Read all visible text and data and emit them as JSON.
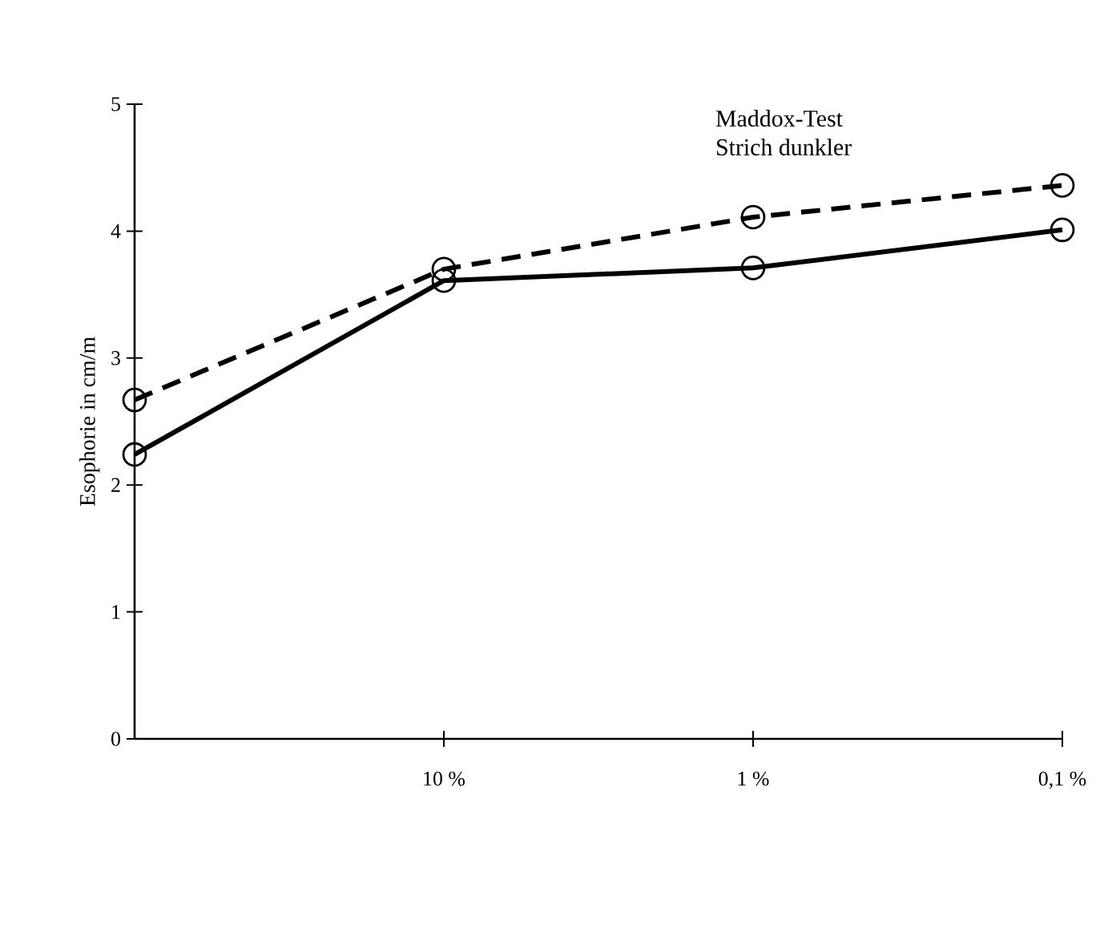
{
  "chart_data": {
    "type": "line",
    "title": "Maddox-Test",
    "subtitle": "Strich dunkler",
    "ylabel": "Esophorie in cm/m",
    "categories": [
      null,
      "10 %",
      "1 %",
      "0,1 %"
    ],
    "series": [
      {
        "color": "#000000",
        "line_style": "solid",
        "values": [
          2.24,
          3.61,
          3.71,
          4.01
        ]
      },
      {
        "color": "#000000",
        "line_style": "dashed",
        "values": [
          2.67,
          3.7,
          4.11,
          4.36
        ]
      }
    ],
    "ylim": [
      0,
      5
    ],
    "yticks": [
      0,
      1,
      2,
      3,
      4,
      5
    ],
    "marker": "circle"
  }
}
